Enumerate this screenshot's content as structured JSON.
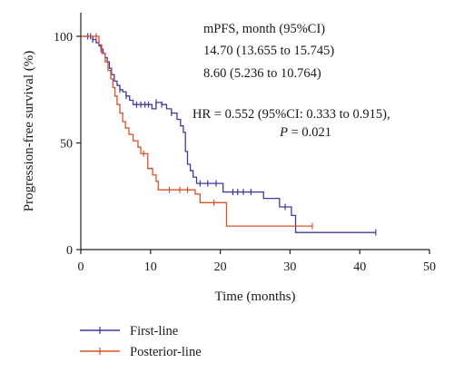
{
  "chart_data": {
    "type": "line",
    "xlabel": "Time (months)",
    "ylabel": "Progression-free survival (%)",
    "xlim": [
      0,
      50
    ],
    "ylim": [
      0,
      100
    ],
    "x_ticks": [
      "0",
      "10",
      "20",
      "30",
      "40",
      "50"
    ],
    "y_ticks": [
      "0",
      "50",
      "100"
    ],
    "grid": false,
    "legend_position": "bottom-left",
    "annotations": [
      "mPFS, month (95%CI)",
      "14.70 (13.655 to 15.745)",
      "8.60 (5.236 to 10.764)",
      "HR = 0.552 (95%CI: 0.333 to 0.915),",
      "P",
      " = 0.021"
    ],
    "series": [
      {
        "name": "First-line",
        "color": "#3d3d9b",
        "steps": [
          [
            0,
            100
          ],
          [
            1.7,
            98.5
          ],
          [
            2.2,
            97
          ],
          [
            2.6,
            95.5
          ],
          [
            2.9,
            94
          ],
          [
            3.2,
            92
          ],
          [
            3.5,
            90
          ],
          [
            3.8,
            88
          ],
          [
            4.1,
            85
          ],
          [
            4.4,
            82
          ],
          [
            4.8,
            79
          ],
          [
            5.2,
            77
          ],
          [
            5.6,
            75
          ],
          [
            6.0,
            74
          ],
          [
            6.5,
            72
          ],
          [
            7.0,
            70
          ],
          [
            7.5,
            68
          ],
          [
            10.2,
            66
          ],
          [
            10.8,
            69
          ],
          [
            11.6,
            68
          ],
          [
            12.3,
            66
          ],
          [
            13.0,
            64
          ],
          [
            13.8,
            61
          ],
          [
            14.3,
            58
          ],
          [
            14.7,
            55
          ],
          [
            15.0,
            46
          ],
          [
            15.3,
            40
          ],
          [
            15.7,
            37
          ],
          [
            16.1,
            34
          ],
          [
            16.6,
            31
          ],
          [
            20.4,
            27
          ],
          [
            26.2,
            24
          ],
          [
            28.5,
            20
          ],
          [
            30.2,
            16
          ],
          [
            30.8,
            8
          ],
          [
            42.3,
            8
          ]
        ],
        "censors": [
          [
            1.0,
            100
          ],
          [
            1.4,
            100
          ],
          [
            1.7,
            98.5
          ],
          [
            2.9,
            94
          ],
          [
            5.6,
            75
          ],
          [
            6.5,
            72
          ],
          [
            8.0,
            68
          ],
          [
            8.6,
            68
          ],
          [
            9.2,
            68
          ],
          [
            9.7,
            68
          ],
          [
            10.8,
            69
          ],
          [
            11.6,
            68
          ],
          [
            13.0,
            64
          ],
          [
            17.1,
            31
          ],
          [
            18.2,
            31
          ],
          [
            19.4,
            31
          ],
          [
            21.8,
            27
          ],
          [
            22.5,
            27
          ],
          [
            23.3,
            27
          ],
          [
            24.4,
            27
          ],
          [
            29.3,
            20
          ],
          [
            42.3,
            8
          ]
        ]
      },
      {
        "name": "Posterior-line",
        "color": "#d9522b",
        "steps": [
          [
            0,
            100
          ],
          [
            2.6,
            96
          ],
          [
            3.0,
            92
          ],
          [
            3.5,
            88
          ],
          [
            3.9,
            84
          ],
          [
            4.3,
            80
          ],
          [
            4.6,
            76
          ],
          [
            4.9,
            72
          ],
          [
            5.2,
            68
          ],
          [
            5.6,
            64
          ],
          [
            6.0,
            60
          ],
          [
            6.4,
            57
          ],
          [
            6.9,
            54
          ],
          [
            7.5,
            51
          ],
          [
            8.2,
            48
          ],
          [
            8.6,
            45
          ],
          [
            9.6,
            38
          ],
          [
            10.3,
            35
          ],
          [
            10.8,
            32
          ],
          [
            11.1,
            28
          ],
          [
            16.4,
            26
          ],
          [
            17.1,
            22
          ],
          [
            20.9,
            11
          ],
          [
            33.2,
            11
          ]
        ],
        "censors": [
          [
            2.2,
            100
          ],
          [
            9.0,
            45
          ],
          [
            12.7,
            28
          ],
          [
            14.2,
            28
          ],
          [
            15.3,
            28
          ],
          [
            19.1,
            22
          ],
          [
            33.2,
            11
          ]
        ]
      }
    ]
  }
}
